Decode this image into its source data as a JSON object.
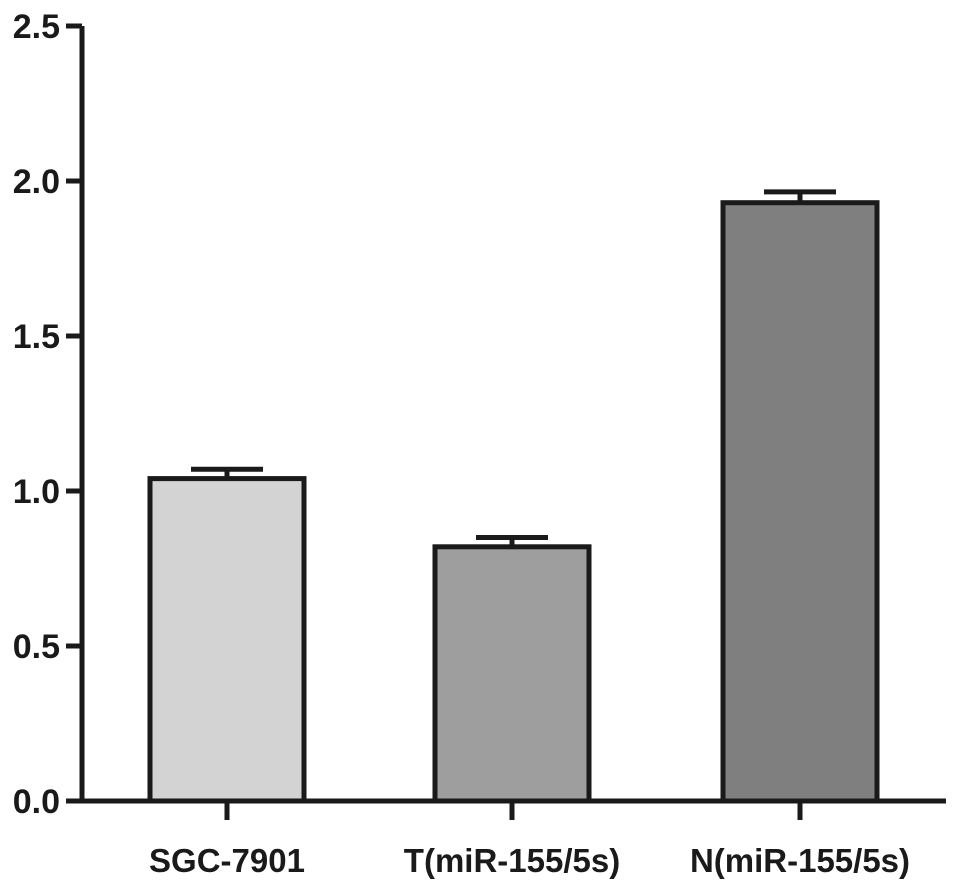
{
  "chart_data": {
    "type": "bar",
    "title": "",
    "xlabel": "",
    "ylabel": "",
    "categories": [
      "SGC-7901",
      "T(miR-155/5s)",
      "N(miR-155/5s)"
    ],
    "values": [
      1.04,
      0.82,
      1.93
    ],
    "errors": [
      0.03,
      0.03,
      0.035
    ],
    "bar_colors": [
      "#d3d3d3",
      "#9e9e9e",
      "#7f7f7f"
    ],
    "ylim": [
      0,
      2.5
    ],
    "yticks": [
      "0.0",
      "0.5",
      "1.0",
      "1.5",
      "2.0",
      "2.5"
    ],
    "grid": false,
    "legend": "none"
  }
}
